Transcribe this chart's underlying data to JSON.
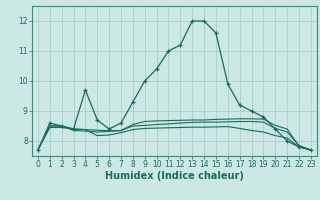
{
  "background_color": "#cce8e4",
  "grid_color": "#aacccc",
  "line_color": "#1a6b5c",
  "lines": [
    {
      "x": [
        0,
        1,
        2,
        3,
        4,
        5,
        6,
        7,
        8,
        9,
        10,
        11,
        12,
        13,
        14,
        15,
        16,
        17,
        18,
        19,
        20,
        21,
        22,
        23
      ],
      "y": [
        7.7,
        8.6,
        8.5,
        8.4,
        9.7,
        8.7,
        8.4,
        8.6,
        9.3,
        10.0,
        10.4,
        11.0,
        11.2,
        12.0,
        12.0,
        11.6,
        9.9,
        9.2,
        9.0,
        8.8,
        8.4,
        8.0,
        7.8,
        7.7
      ],
      "marker": true
    },
    {
      "x": [
        0,
        1,
        2,
        3,
        4,
        5,
        6,
        7,
        8,
        9,
        10,
        11,
        12,
        13,
        14,
        15,
        16,
        17,
        18,
        19,
        20,
        21,
        22,
        23
      ],
      "y": [
        7.7,
        8.45,
        8.45,
        8.4,
        8.38,
        8.36,
        8.34,
        8.35,
        8.5,
        8.52,
        8.55,
        8.57,
        8.6,
        8.62,
        8.63,
        8.63,
        8.64,
        8.65,
        8.65,
        8.63,
        8.42,
        8.3,
        7.85,
        7.7
      ],
      "marker": false
    },
    {
      "x": [
        0,
        1,
        2,
        3,
        4,
        5,
        6,
        7,
        8,
        9,
        10,
        11,
        12,
        13,
        14,
        15,
        16,
        17,
        18,
        19,
        20,
        21,
        22,
        23
      ],
      "y": [
        7.7,
        8.5,
        8.5,
        8.35,
        8.33,
        8.3,
        8.32,
        8.35,
        8.55,
        8.65,
        8.67,
        8.68,
        8.69,
        8.7,
        8.7,
        8.72,
        8.73,
        8.74,
        8.74,
        8.73,
        8.52,
        8.4,
        7.83,
        7.7
      ],
      "marker": false
    },
    {
      "x": [
        0,
        1,
        2,
        3,
        4,
        5,
        6,
        7,
        8,
        9,
        10,
        11,
        12,
        13,
        14,
        15,
        16,
        17,
        18,
        19,
        20,
        21,
        22,
        23
      ],
      "y": [
        7.7,
        8.5,
        8.5,
        8.4,
        8.38,
        8.18,
        8.2,
        8.28,
        8.38,
        8.42,
        8.43,
        8.44,
        8.45,
        8.46,
        8.46,
        8.47,
        8.48,
        8.42,
        8.35,
        8.3,
        8.18,
        8.1,
        7.8,
        7.7
      ],
      "marker": false
    }
  ],
  "xlim": [
    -0.5,
    23.5
  ],
  "ylim": [
    7.5,
    12.5
  ],
  "yticks": [
    8,
    9,
    10,
    11,
    12
  ],
  "xticks": [
    0,
    1,
    2,
    3,
    4,
    5,
    6,
    7,
    8,
    9,
    10,
    11,
    12,
    13,
    14,
    15,
    16,
    17,
    18,
    19,
    20,
    21,
    22,
    23
  ],
  "xlabel": "Humidex (Indice chaleur)",
  "xlabel_color": "#1a6b5c",
  "tick_color": "#1a6b5c",
  "axis_color": "#3a8a7a",
  "tick_fontsize": 5.5,
  "xlabel_fontsize": 7,
  "figwidth": 3.2,
  "figheight": 2.0,
  "dpi": 100
}
